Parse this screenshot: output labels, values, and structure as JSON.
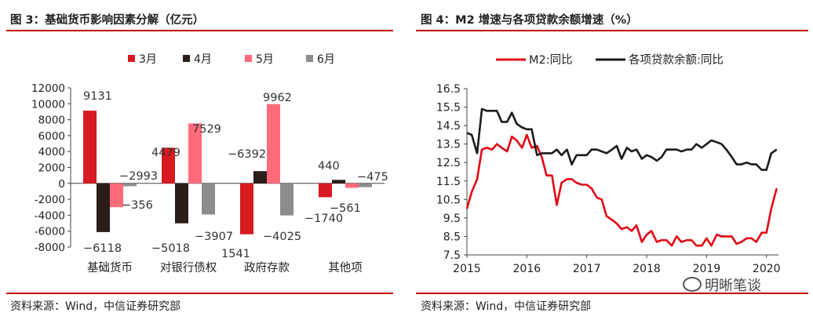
{
  "left": {
    "title": "图 3：基础货币影响因素分解（亿元）",
    "source": "资料来源：Wind，中信证券研究部",
    "chart_data": {
      "type": "bar",
      "categories": [
        "基础货币",
        "对银行债权",
        "政府存款",
        "其他项"
      ],
      "series": [
        {
          "name": "3月",
          "color": "#d71920",
          "values": [
            9131,
            4479,
            -6392,
            -1740
          ]
        },
        {
          "name": "4月",
          "color": "#2b1d1a",
          "values": [
            -6118,
            -5018,
            1541,
            440
          ]
        },
        {
          "name": "5月",
          "color": "#ff6b7a",
          "values": [
            -2993,
            7529,
            9962,
            -561
          ]
        },
        {
          "name": "6月",
          "color": "#8c8c8c",
          "values": [
            -356,
            -3907,
            -4025,
            -475
          ]
        }
      ],
      "ylim": [
        -8000,
        12000
      ],
      "yticks": [
        -8000,
        -6000,
        -4000,
        -2000,
        0,
        2000,
        4000,
        6000,
        8000,
        10000,
        12000
      ],
      "legend": "top",
      "grid": false
    }
  },
  "right": {
    "title": "图 4：M2 增速与各项贷款余额增速（%）",
    "source": "资料来源：Wind，中信证券研究部",
    "watermark": "明晰笔谈",
    "chart_data": {
      "type": "line",
      "xlim": [
        2015.0,
        2020.2
      ],
      "ylim": [
        7.5,
        16.5
      ],
      "yticks": [
        7.5,
        8.5,
        9.5,
        10.5,
        11.5,
        12.5,
        13.5,
        14.5,
        15.5,
        16.5
      ],
      "xticks": [
        2015,
        2016,
        2017,
        2018,
        2019,
        2020
      ],
      "legend": "top",
      "grid": false,
      "series": [
        {
          "name": "M2:同比",
          "color": "#e30613",
          "x": [
            2015.0,
            2015.08,
            2015.17,
            2015.25,
            2015.33,
            2015.42,
            2015.5,
            2015.58,
            2015.67,
            2015.75,
            2015.83,
            2015.92,
            2016.0,
            2016.08,
            2016.17,
            2016.25,
            2016.33,
            2016.42,
            2016.5,
            2016.58,
            2016.67,
            2016.75,
            2016.83,
            2016.92,
            2017.0,
            2017.08,
            2017.17,
            2017.25,
            2017.33,
            2017.42,
            2017.5,
            2017.58,
            2017.67,
            2017.75,
            2017.83,
            2017.92,
            2018.0,
            2018.08,
            2018.17,
            2018.25,
            2018.33,
            2018.42,
            2018.5,
            2018.58,
            2018.67,
            2018.75,
            2018.83,
            2018.92,
            2019.0,
            2019.08,
            2019.17,
            2019.25,
            2019.33,
            2019.42,
            2019.5,
            2019.58,
            2019.67,
            2019.75,
            2019.83,
            2019.92,
            2020.0,
            2020.08,
            2020.17
          ],
          "y": [
            10.0,
            10.9,
            11.6,
            13.2,
            13.3,
            13.2,
            13.5,
            13.3,
            13.1,
            13.9,
            13.7,
            13.3,
            14.0,
            13.3,
            13.4,
            12.8,
            11.8,
            11.8,
            10.2,
            11.4,
            11.6,
            11.6,
            11.4,
            11.3,
            11.3,
            11.1,
            10.6,
            10.5,
            9.6,
            9.4,
            9.2,
            8.9,
            9.0,
            8.8,
            9.1,
            8.2,
            8.6,
            8.8,
            8.2,
            8.3,
            8.3,
            8.0,
            8.5,
            8.2,
            8.3,
            8.3,
            8.0,
            8.0,
            8.4,
            8.0,
            8.6,
            8.5,
            8.5,
            8.5,
            8.1,
            8.2,
            8.4,
            8.4,
            8.2,
            8.7,
            8.7,
            10.0,
            11.1
          ],
          "end_y": 11.1
        },
        {
          "name": "各项贷款余额:同比",
          "color": "#1a1a1a",
          "x": [
            2015.0,
            2015.08,
            2015.17,
            2015.25,
            2015.33,
            2015.42,
            2015.5,
            2015.58,
            2015.67,
            2015.75,
            2015.83,
            2015.92,
            2016.0,
            2016.08,
            2016.17,
            2016.25,
            2016.33,
            2016.42,
            2016.5,
            2016.58,
            2016.67,
            2016.75,
            2016.83,
            2016.92,
            2017.0,
            2017.08,
            2017.17,
            2017.25,
            2017.33,
            2017.42,
            2017.5,
            2017.58,
            2017.67,
            2017.75,
            2017.83,
            2017.92,
            2018.0,
            2018.08,
            2018.17,
            2018.25,
            2018.33,
            2018.42,
            2018.5,
            2018.58,
            2018.67,
            2018.75,
            2018.83,
            2018.92,
            2019.0,
            2019.08,
            2019.17,
            2019.25,
            2019.33,
            2019.42,
            2019.5,
            2019.58,
            2019.67,
            2019.75,
            2019.83,
            2019.92,
            2020.0,
            2020.08,
            2020.17
          ],
          "y": [
            14.1,
            14.0,
            13.0,
            15.4,
            15.3,
            15.3,
            15.3,
            14.7,
            14.7,
            15.2,
            14.6,
            14.4,
            14.3,
            14.3,
            12.9,
            13.0,
            13.0,
            13.0,
            13.2,
            12.9,
            13.2,
            12.4,
            12.9,
            12.9,
            12.9,
            13.2,
            13.2,
            13.1,
            13.0,
            13.2,
            13.4,
            12.7,
            13.3,
            13.1,
            13.2,
            12.7,
            12.9,
            12.8,
            12.6,
            12.8,
            13.2,
            13.2,
            13.2,
            13.1,
            13.2,
            13.2,
            13.5,
            13.3,
            13.5,
            13.7,
            13.6,
            13.5,
            13.2,
            12.8,
            12.4,
            12.4,
            12.5,
            12.4,
            12.4,
            12.1,
            12.1,
            13.0,
            13.2
          ],
          "end_y": 13.2
        }
      ]
    }
  }
}
